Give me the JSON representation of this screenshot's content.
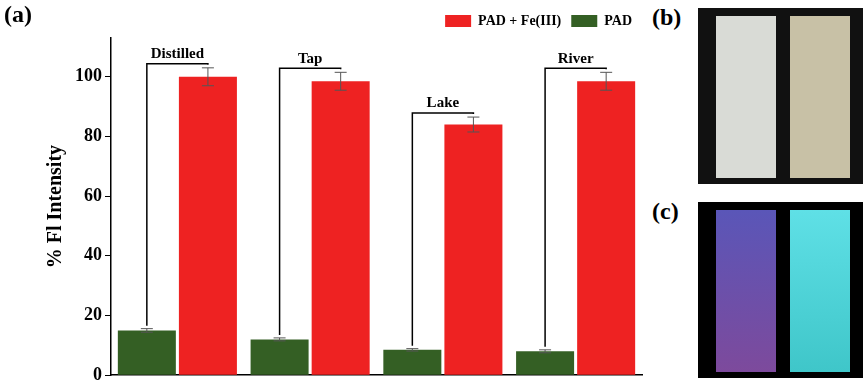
{
  "chart_data": {
    "type": "bar",
    "title": "(a)",
    "categories": [
      "Distilled",
      "Tap",
      "Lake",
      "River"
    ],
    "series": [
      {
        "name": "PAD",
        "color": "#345f24",
        "values": [
          15,
          12,
          8.5,
          8
        ],
        "errors": [
          0.6,
          0.5,
          0.4,
          0.5
        ]
      },
      {
        "name": "PAD + Fe(III)",
        "color": "#ee2222",
        "values": [
          100,
          98.5,
          84,
          98.5
        ],
        "errors": [
          3,
          3,
          2.5,
          3
        ]
      }
    ],
    "y_label": "% Fl Intensity",
    "ylim": [
      0,
      113
    ],
    "yticks": [
      0,
      20,
      40,
      60,
      80,
      100
    ],
    "grid": false,
    "legend": "top",
    "tick_labels": "y"
  },
  "panels": [
    {
      "label": "(b)"
    },
    {
      "label": "(c)"
    }
  ]
}
